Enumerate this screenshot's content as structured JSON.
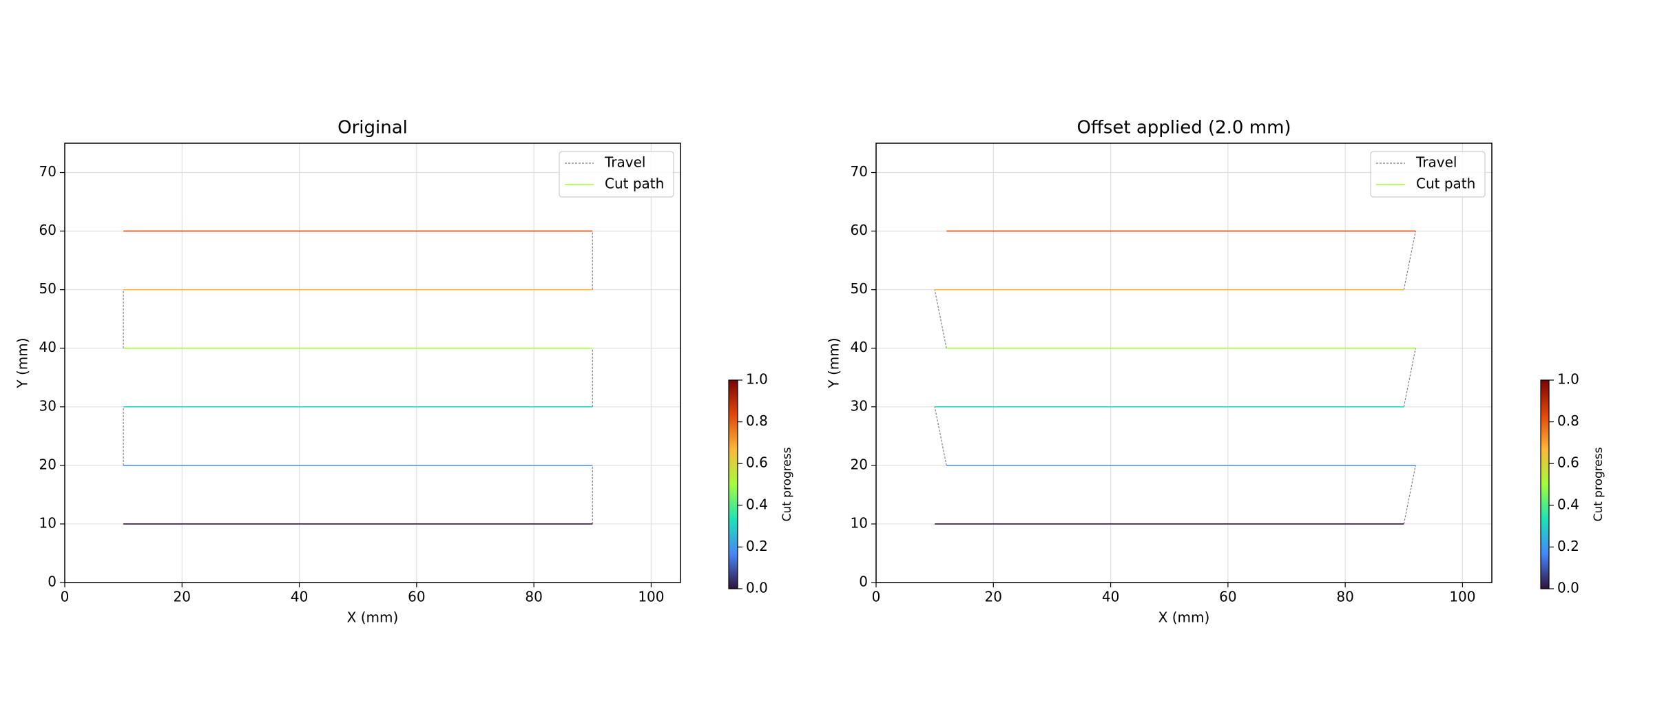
{
  "chart_data": [
    {
      "type": "line",
      "title": "Original",
      "xlabel": "X (mm)",
      "ylabel": "Y (mm)",
      "xlim": [
        0,
        105
      ],
      "ylim": [
        0,
        75
      ],
      "xticks": [
        0,
        20,
        40,
        60,
        80,
        100
      ],
      "yticks": [
        0,
        10,
        20,
        30,
        40,
        50,
        60,
        70
      ],
      "grid": true,
      "legend": "upper right",
      "series": [
        {
          "name": "Travel",
          "color": "#808080",
          "dashed": true,
          "x": [
            90,
            90,
            null,
            10,
            10,
            null,
            90,
            90,
            null,
            10,
            10,
            null,
            90,
            90
          ],
          "values": [
            10,
            20,
            null,
            20,
            30,
            null,
            30,
            40,
            null,
            40,
            50,
            null,
            50,
            60
          ]
        },
        {
          "name": "Cut path",
          "color": "#a4fc3c",
          "segments": [
            {
              "color": "#30123b",
              "x": [
                10,
                90
              ],
              "values": [
                10,
                10
              ]
            },
            {
              "color": "#4686fb",
              "x": [
                90,
                10
              ],
              "values": [
                20,
                20
              ]
            },
            {
              "color": "#1ae4b6",
              "x": [
                10,
                90
              ],
              "values": [
                30,
                30
              ]
            },
            {
              "color": "#a4fc3c",
              "x": [
                90,
                10
              ],
              "values": [
                40,
                40
              ]
            },
            {
              "color": "#fbb938",
              "x": [
                10,
                90
              ],
              "values": [
                50,
                50
              ]
            },
            {
              "color": "#e4460a",
              "x": [
                90,
                10
              ],
              "values": [
                60,
                60
              ]
            }
          ]
        }
      ],
      "colorbar": {
        "label": "Cut progress",
        "lim": [
          0,
          1
        ],
        "ticks": [
          {
            "value": 0,
            "label": "0.0"
          },
          0.2,
          0.4,
          0.6,
          0.8,
          {
            "value": 1,
            "label": "1.0"
          }
        ],
        "colors": [
          "#30123b",
          "#4686fb",
          "#1ae4b6",
          "#a4fc3c",
          "#fbb938",
          "#e4460a",
          "#7a0403"
        ]
      }
    },
    {
      "type": "line",
      "title": "Offset applied (2.0 mm)",
      "xlabel": "X (mm)",
      "ylabel": "Y (mm)",
      "xlim": [
        0,
        105
      ],
      "ylim": [
        0,
        75
      ],
      "xticks": [
        0,
        20,
        40,
        60,
        80,
        100
      ],
      "yticks": [
        0,
        10,
        20,
        30,
        40,
        50,
        60,
        70
      ],
      "grid": true,
      "legend": "upper right",
      "series": [
        {
          "name": "Travel",
          "color": "#808080",
          "dashed": true,
          "x": [
            90,
            92,
            null,
            12,
            10,
            null,
            90,
            92,
            null,
            12,
            10,
            null,
            90,
            92
          ],
          "values": [
            10,
            20,
            null,
            20,
            30,
            null,
            30,
            40,
            null,
            40,
            50,
            null,
            50,
            60
          ]
        },
        {
          "name": "Cut path",
          "color": "#a4fc3c",
          "segments": [
            {
              "color": "#30123b",
              "x": [
                10,
                90
              ],
              "values": [
                10,
                10
              ]
            },
            {
              "color": "#4686fb",
              "x": [
                92,
                12
              ],
              "values": [
                20,
                20
              ]
            },
            {
              "color": "#1ae4b6",
              "x": [
                10,
                90
              ],
              "values": [
                30,
                30
              ]
            },
            {
              "color": "#a4fc3c",
              "x": [
                92,
                12
              ],
              "values": [
                40,
                40
              ]
            },
            {
              "color": "#fbb938",
              "x": [
                10,
                90
              ],
              "values": [
                50,
                50
              ]
            },
            {
              "color": "#e4460a",
              "x": [
                92,
                12
              ],
              "values": [
                60,
                60
              ]
            }
          ]
        }
      ],
      "colorbar": {
        "label": "Cut progress",
        "lim": [
          0,
          1
        ],
        "ticks": [
          {
            "value": 0,
            "label": "0.0"
          },
          0.2,
          0.4,
          0.6,
          0.8,
          {
            "value": 1,
            "label": "1.0"
          }
        ],
        "colors": [
          "#30123b",
          "#4686fb",
          "#1ae4b6",
          "#a4fc3c",
          "#fbb938",
          "#e4460a",
          "#7a0403"
        ]
      }
    }
  ]
}
